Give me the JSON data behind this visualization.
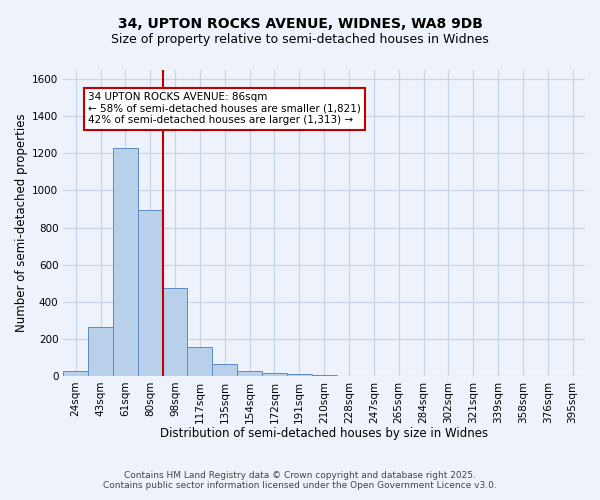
{
  "title": "34, UPTON ROCKS AVENUE, WIDNES, WA8 9DB",
  "subtitle": "Size of property relative to semi-detached houses in Widnes",
  "xlabel": "Distribution of semi-detached houses by size in Widnes",
  "ylabel": "Number of semi-detached properties",
  "bar_labels": [
    "24sqm",
    "43sqm",
    "61sqm",
    "80sqm",
    "98sqm",
    "117sqm",
    "135sqm",
    "154sqm",
    "172sqm",
    "191sqm",
    "210sqm",
    "228sqm",
    "247sqm",
    "265sqm",
    "284sqm",
    "302sqm",
    "321sqm",
    "339sqm",
    "358sqm",
    "376sqm",
    "395sqm"
  ],
  "bar_values": [
    28,
    265,
    1230,
    895,
    475,
    155,
    65,
    28,
    18,
    8,
    5,
    0,
    0,
    0,
    0,
    0,
    0,
    0,
    0,
    0,
    0
  ],
  "bar_color": "#b8d0ea",
  "bar_edge_color": "#5b8cc4",
  "grid_color": "#c8d4e4",
  "background_color": "#eef2fa",
  "vline_x": 3.5,
  "vline_color": "#c00000",
  "annotation_text": "34 UPTON ROCKS AVENUE: 86sqm\n← 58% of semi-detached houses are smaller (1,821)\n42% of semi-detached houses are larger (1,313) →",
  "annotation_box_color": "#ffffff",
  "annotation_box_edge": "#c00000",
  "ylim": [
    0,
    1650
  ],
  "yticks": [
    0,
    200,
    400,
    600,
    800,
    1000,
    1200,
    1400,
    1600
  ],
  "footer_line1": "Contains HM Land Registry data © Crown copyright and database right 2025.",
  "footer_line2": "Contains public sector information licensed under the Open Government Licence v3.0.",
  "title_fontsize": 10,
  "subtitle_fontsize": 9,
  "axis_label_fontsize": 8.5,
  "tick_fontsize": 7.5,
  "annotation_fontsize": 7.5,
  "footer_fontsize": 6.5
}
